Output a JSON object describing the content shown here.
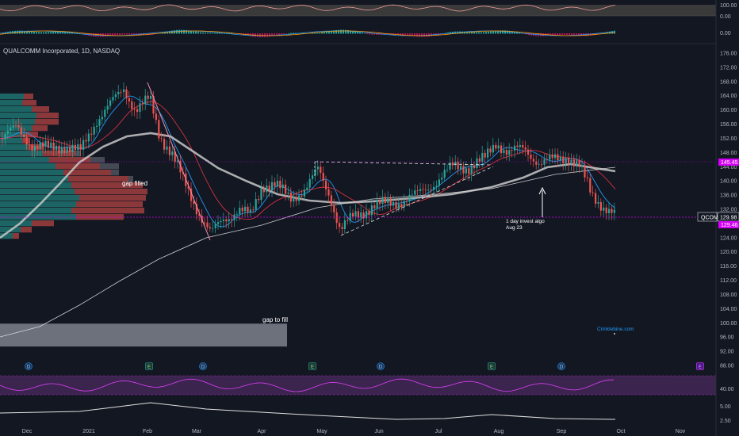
{
  "symbol_title": "QUALCOMM Incorporated, 1D, NASDAQ",
  "colors": {
    "background": "#131722",
    "up": "#26a69a",
    "down": "#ef5350",
    "ema_fast": "#2196f3",
    "ema_slow": "#f23645",
    "ma_thick": "#c8c8c8",
    "ma_long": "#e0e0e0",
    "price_tag": "#d500f9",
    "rsi_band": "#4a2a5e",
    "rsi_line": "#e040fb",
    "trend_line": "#e0e0e0",
    "vp_up": "#26a69a",
    "vp_down": "#ef5350",
    "vp_neutral": "#787b86",
    "gap_box": "#787b86"
  },
  "badges": {
    "dividend": "D",
    "earnings": "E"
  },
  "annotations": {
    "gap_filled": "gap filled",
    "gap_to_fill": "gap to fill",
    "invest_note_line1": "1 day invest algo",
    "invest_note_line2": "Aug 23",
    "watermark": "Crinklebine.com"
  },
  "price_tag": {
    "ticker": "QCOM",
    "last": "129.98",
    "tag_upper": "145.45",
    "tag_lower": "129.46"
  },
  "chart_data": {
    "type": "candlestick",
    "title": "QUALCOMM Incorporated, 1D, NASDAQ",
    "x_axis_labels": [
      "Dec",
      "2021",
      "Feb",
      "Mar",
      "Apr",
      "May",
      "Jun",
      "Jul",
      "Aug",
      "Sep",
      "Oct",
      "Nov"
    ],
    "price_axis_labels": [
      "176.00",
      "172.00",
      "168.00",
      "164.00",
      "160.00",
      "156.00",
      "152.00",
      "148.00",
      "144.00",
      "140.00",
      "136.00",
      "132.00",
      "128.00",
      "124.00",
      "120.00",
      "116.00",
      "112.00",
      "108.00",
      "104.00",
      "100.00",
      "96.00",
      "92.00",
      "88.00"
    ],
    "price_range": [
      86,
      178
    ],
    "top_panel_labels": [
      "100.00",
      "0.00"
    ],
    "macd_panel_label": "0.00",
    "rsi_panel_label": "40.00",
    "bottom_panel_label": "5.00",
    "bottom_panel_label2": "2.50",
    "price_path_estimate": [
      {
        "date": "Dec",
        "close": 155
      },
      {
        "date": "Dec",
        "close": 150
      },
      {
        "date": "2021",
        "close": 148
      },
      {
        "date": "2021",
        "close": 156
      },
      {
        "date": "2021",
        "close": 163
      },
      {
        "date": "Feb",
        "close": 166
      },
      {
        "date": "Feb",
        "close": 150
      },
      {
        "date": "Feb",
        "close": 143
      },
      {
        "date": "Mar",
        "close": 125
      },
      {
        "date": "Mar",
        "close": 131
      },
      {
        "date": "Apr",
        "close": 139
      },
      {
        "date": "Apr",
        "close": 137
      },
      {
        "date": "May",
        "close": 143
      },
      {
        "date": "May",
        "close": 126
      },
      {
        "date": "Jun",
        "close": 133
      },
      {
        "date": "Jun",
        "close": 134
      },
      {
        "date": "Jul",
        "close": 141
      },
      {
        "date": "Jul",
        "close": 144
      },
      {
        "date": "Aug",
        "close": 151
      },
      {
        "date": "Aug",
        "close": 147
      },
      {
        "date": "Sep",
        "close": 146
      },
      {
        "date": "Sep",
        "close": 138
      },
      {
        "date": "Sep",
        "close": 129.98
      }
    ],
    "last_price": 129.98,
    "gap_to_fill_zone": [
      94,
      100
    ]
  }
}
